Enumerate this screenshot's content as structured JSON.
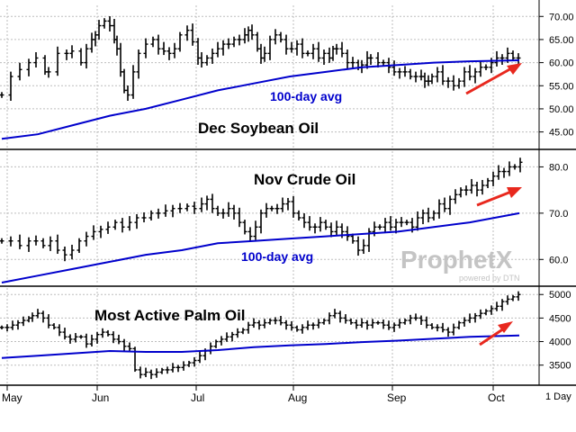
{
  "chart_data": [
    {
      "type": "ohlc",
      "title": "Dec Soybean Oil",
      "ylim": [
        42,
        72
      ],
      "yticks": [
        "70.00",
        "65.00",
        "60.00",
        "55.00",
        "50.00",
        "45.00"
      ],
      "ytick_values": [
        70,
        65,
        60,
        55,
        50,
        45
      ],
      "close_points": [
        [
          0,
          53
        ],
        [
          10,
          57
        ],
        [
          20,
          58.5
        ],
        [
          30,
          60
        ],
        [
          38,
          61
        ],
        [
          48,
          58
        ],
        [
          52,
          58
        ],
        [
          62,
          62
        ],
        [
          72,
          62
        ],
        [
          78,
          62.5
        ],
        [
          88,
          60
        ],
        [
          94,
          63
        ],
        [
          100,
          65
        ],
        [
          104,
          66
        ],
        [
          108,
          68
        ],
        [
          114,
          69
        ],
        [
          120,
          68
        ],
        [
          125,
          65
        ],
        [
          128,
          63
        ],
        [
          132,
          58
        ],
        [
          136,
          54
        ],
        [
          140,
          53
        ],
        [
          146,
          58
        ],
        [
          152,
          62
        ],
        [
          160,
          64
        ],
        [
          168,
          65
        ],
        [
          174,
          63
        ],
        [
          180,
          62.5
        ],
        [
          186,
          62
        ],
        [
          192,
          63
        ],
        [
          198,
          66
        ],
        [
          206,
          67
        ],
        [
          212,
          64.5
        ],
        [
          218,
          61
        ],
        [
          222,
          60
        ],
        [
          228,
          61
        ],
        [
          234,
          62
        ],
        [
          240,
          63
        ],
        [
          246,
          64
        ],
        [
          252,
          64
        ],
        [
          258,
          65
        ],
        [
          264,
          65
        ],
        [
          270,
          66
        ],
        [
          274,
          67
        ],
        [
          278,
          66
        ],
        [
          284,
          63
        ],
        [
          288,
          61
        ],
        [
          292,
          62
        ],
        [
          298,
          65
        ],
        [
          304,
          66
        ],
        [
          310,
          65
        ],
        [
          316,
          63
        ],
        [
          322,
          63
        ],
        [
          328,
          64
        ],
        [
          334,
          62
        ],
        [
          340,
          62
        ],
        [
          346,
          63
        ],
        [
          352,
          61
        ],
        [
          358,
          62
        ],
        [
          364,
          61
        ],
        [
          368,
          63
        ],
        [
          372,
          63
        ],
        [
          378,
          62
        ],
        [
          384,
          60
        ],
        [
          390,
          60
        ],
        [
          396,
          59
        ],
        [
          400,
          59.5
        ],
        [
          406,
          61
        ],
        [
          410,
          61
        ],
        [
          418,
          60
        ],
        [
          424,
          60
        ],
        [
          430,
          59
        ],
        [
          436,
          58
        ],
        [
          442,
          58
        ],
        [
          448,
          58
        ],
        [
          454,
          57
        ],
        [
          460,
          57
        ],
        [
          466,
          57
        ],
        [
          470,
          56
        ],
        [
          474,
          56
        ],
        [
          478,
          57
        ],
        [
          484,
          58
        ],
        [
          490,
          56
        ],
        [
          496,
          56
        ],
        [
          502,
          55
        ],
        [
          508,
          56
        ],
        [
          514,
          58
        ],
        [
          520,
          57
        ],
        [
          526,
          58
        ],
        [
          532,
          59
        ],
        [
          538,
          59
        ],
        [
          544,
          60
        ],
        [
          550,
          61
        ],
        [
          556,
          61
        ],
        [
          562,
          62
        ],
        [
          568,
          61
        ],
        [
          574,
          61
        ]
      ],
      "series": [
        {
          "name": "100-day avg",
          "color": "#0000cc",
          "points": [
            [
              0,
              43.5
            ],
            [
              40,
              44.5
            ],
            [
              80,
              46.5
            ],
            [
              120,
              48.5
            ],
            [
              160,
              50
            ],
            [
              200,
              52
            ],
            [
              240,
              54
            ],
            [
              280,
              55.5
            ],
            [
              320,
              57
            ],
            [
              360,
              58
            ],
            [
              400,
              59
            ],
            [
              440,
              59.5
            ],
            [
              480,
              60
            ],
            [
              520,
              60.3
            ],
            [
              575,
              60.5
            ]
          ]
        }
      ],
      "annotations": [
        {
          "text": "100-day avg",
          "color": "#0000cc"
        },
        {
          "text": "Dec Soybean Oil",
          "color": "#000000"
        }
      ]
    },
    {
      "type": "ohlc",
      "title": "Nov Crude Oil",
      "ylim": [
        55,
        83
      ],
      "yticks": [
        "80.0",
        "70.0",
        "60.0"
      ],
      "ytick_values": [
        80,
        70,
        60
      ],
      "close_points": [
        [
          0,
          64
        ],
        [
          10,
          64
        ],
        [
          20,
          63
        ],
        [
          30,
          64
        ],
        [
          38,
          64
        ],
        [
          46,
          63
        ],
        [
          54,
          64
        ],
        [
          62,
          62
        ],
        [
          70,
          61
        ],
        [
          78,
          62
        ],
        [
          86,
          64
        ],
        [
          94,
          65
        ],
        [
          102,
          66
        ],
        [
          110,
          66.5
        ],
        [
          118,
          67
        ],
        [
          126,
          68
        ],
        [
          134,
          67
        ],
        [
          142,
          68
        ],
        [
          150,
          69
        ],
        [
          158,
          69
        ],
        [
          166,
          70
        ],
        [
          174,
          70
        ],
        [
          182,
          70.5
        ],
        [
          190,
          71
        ],
        [
          198,
          71
        ],
        [
          206,
          71.5
        ],
        [
          214,
          71
        ],
        [
          222,
          72
        ],
        [
          228,
          73
        ],
        [
          234,
          71
        ],
        [
          240,
          70
        ],
        [
          246,
          70
        ],
        [
          252,
          71
        ],
        [
          258,
          70
        ],
        [
          264,
          68
        ],
        [
          270,
          66
        ],
        [
          276,
          65
        ],
        [
          282,
          67
        ],
        [
          288,
          70
        ],
        [
          294,
          71
        ],
        [
          300,
          71
        ],
        [
          306,
          71
        ],
        [
          312,
          72
        ],
        [
          318,
          72.5
        ],
        [
          324,
          70
        ],
        [
          330,
          69
        ],
        [
          336,
          68
        ],
        [
          342,
          67
        ],
        [
          348,
          67
        ],
        [
          354,
          68
        ],
        [
          360,
          67
        ],
        [
          366,
          66
        ],
        [
          372,
          67
        ],
        [
          378,
          66
        ],
        [
          384,
          65
        ],
        [
          390,
          64
        ],
        [
          396,
          62
        ],
        [
          402,
          63
        ],
        [
          408,
          66
        ],
        [
          414,
          67
        ],
        [
          420,
          67
        ],
        [
          426,
          68
        ],
        [
          432,
          67
        ],
        [
          438,
          68
        ],
        [
          444,
          68
        ],
        [
          450,
          68
        ],
        [
          456,
          67
        ],
        [
          462,
          69
        ],
        [
          468,
          70
        ],
        [
          474,
          69
        ],
        [
          480,
          70
        ],
        [
          486,
          72
        ],
        [
          492,
          71
        ],
        [
          498,
          73
        ],
        [
          504,
          74
        ],
        [
          510,
          75
        ],
        [
          516,
          75
        ],
        [
          522,
          76
        ],
        [
          528,
          75
        ],
        [
          534,
          76
        ],
        [
          540,
          77
        ],
        [
          546,
          78
        ],
        [
          552,
          79
        ],
        [
          558,
          79
        ],
        [
          564,
          80
        ],
        [
          570,
          80
        ],
        [
          576,
          81
        ]
      ],
      "series": [
        {
          "name": "100-day avg",
          "color": "#0000cc",
          "points": [
            [
              0,
              55
            ],
            [
              40,
              56.5
            ],
            [
              80,
              58
            ],
            [
              120,
              59.5
            ],
            [
              160,
              61
            ],
            [
              200,
              62
            ],
            [
              240,
              63.5
            ],
            [
              280,
              64
            ],
            [
              320,
              64.5
            ],
            [
              360,
              65
            ],
            [
              400,
              65.5
            ],
            [
              440,
              66
            ],
            [
              480,
              67
            ],
            [
              520,
              68
            ],
            [
              575,
              70
            ]
          ]
        }
      ],
      "annotations": [
        {
          "text": "Nov Crude Oil",
          "color": "#000000"
        },
        {
          "text": "100-day avg",
          "color": "#0000cc"
        }
      ]
    },
    {
      "type": "ohlc",
      "title": "Most Active Palm Oil",
      "ylim": [
        3150,
        5100
      ],
      "yticks": [
        "5000",
        "4500",
        "4000",
        "3500"
      ],
      "ytick_values": [
        5000,
        4500,
        4000,
        3500
      ],
      "close_points": [
        [
          0,
          4300
        ],
        [
          6,
          4300
        ],
        [
          12,
          4350
        ],
        [
          18,
          4400
        ],
        [
          24,
          4450
        ],
        [
          30,
          4500
        ],
        [
          34,
          4550
        ],
        [
          40,
          4600
        ],
        [
          46,
          4500
        ],
        [
          52,
          4350
        ],
        [
          58,
          4300
        ],
        [
          64,
          4200
        ],
        [
          70,
          4100
        ],
        [
          76,
          4050
        ],
        [
          82,
          4100
        ],
        [
          88,
          4100
        ],
        [
          94,
          3950
        ],
        [
          100,
          4050
        ],
        [
          106,
          4150
        ],
        [
          112,
          4200
        ],
        [
          118,
          4150
        ],
        [
          124,
          4050
        ],
        [
          130,
          4000
        ],
        [
          136,
          3900
        ],
        [
          142,
          3850
        ],
        [
          148,
          3400
        ],
        [
          154,
          3300
        ],
        [
          160,
          3350
        ],
        [
          166,
          3300
        ],
        [
          172,
          3350
        ],
        [
          178,
          3400
        ],
        [
          184,
          3400
        ],
        [
          190,
          3450
        ],
        [
          196,
          3450
        ],
        [
          202,
          3500
        ],
        [
          208,
          3550
        ],
        [
          214,
          3600
        ],
        [
          220,
          3700
        ],
        [
          226,
          3800
        ],
        [
          232,
          3900
        ],
        [
          238,
          4000
        ],
        [
          244,
          4050
        ],
        [
          250,
          4100
        ],
        [
          256,
          4150
        ],
        [
          262,
          4200
        ],
        [
          268,
          4250
        ],
        [
          274,
          4350
        ],
        [
          280,
          4400
        ],
        [
          286,
          4350
        ],
        [
          292,
          4400
        ],
        [
          298,
          4450
        ],
        [
          304,
          4450
        ],
        [
          310,
          4400
        ],
        [
          316,
          4350
        ],
        [
          322,
          4300
        ],
        [
          328,
          4250
        ],
        [
          334,
          4300
        ],
        [
          340,
          4350
        ],
        [
          346,
          4350
        ],
        [
          352,
          4400
        ],
        [
          358,
          4450
        ],
        [
          364,
          4550
        ],
        [
          370,
          4600
        ],
        [
          376,
          4500
        ],
        [
          382,
          4450
        ],
        [
          388,
          4400
        ],
        [
          394,
          4350
        ],
        [
          400,
          4400
        ],
        [
          406,
          4350
        ],
        [
          412,
          4400
        ],
        [
          418,
          4400
        ],
        [
          424,
          4350
        ],
        [
          430,
          4300
        ],
        [
          436,
          4350
        ],
        [
          442,
          4400
        ],
        [
          448,
          4450
        ],
        [
          454,
          4500
        ],
        [
          460,
          4500
        ],
        [
          466,
          4450
        ],
        [
          472,
          4350
        ],
        [
          478,
          4300
        ],
        [
          484,
          4300
        ],
        [
          490,
          4250
        ],
        [
          496,
          4200
        ],
        [
          502,
          4300
        ],
        [
          508,
          4400
        ],
        [
          514,
          4450
        ],
        [
          520,
          4500
        ],
        [
          526,
          4550
        ],
        [
          532,
          4600
        ],
        [
          538,
          4650
        ],
        [
          544,
          4700
        ],
        [
          550,
          4750
        ],
        [
          556,
          4850
        ],
        [
          562,
          4900
        ],
        [
          568,
          4950
        ],
        [
          574,
          5000
        ]
      ],
      "series": [
        {
          "name": "",
          "color": "#0000cc",
          "points": [
            [
              0,
              3650
            ],
            [
              40,
              3700
            ],
            [
              80,
              3750
            ],
            [
              120,
              3800
            ],
            [
              160,
              3780
            ],
            [
              200,
              3780
            ],
            [
              240,
              3820
            ],
            [
              280,
              3880
            ],
            [
              320,
              3920
            ],
            [
              360,
              3950
            ],
            [
              400,
              3990
            ],
            [
              440,
              4020
            ],
            [
              480,
              4060
            ],
            [
              520,
              4100
            ],
            [
              575,
              4130
            ]
          ]
        }
      ],
      "annotations": [
        {
          "text": "Most Active Palm Oil",
          "color": "#000000"
        }
      ]
    }
  ],
  "x_axis": {
    "labels": [
      "May",
      "Jun",
      "Jul",
      "Aug",
      "Sep",
      "Oct"
    ],
    "period_label": "1 Day"
  },
  "watermark": {
    "brand": "ProphetX",
    "sub": "powered by DTN"
  },
  "colors": {
    "price_bars": "#000000",
    "moving_average": "#0000cc",
    "arrow": "#e8281e",
    "watermark": "#c4c4c4"
  }
}
